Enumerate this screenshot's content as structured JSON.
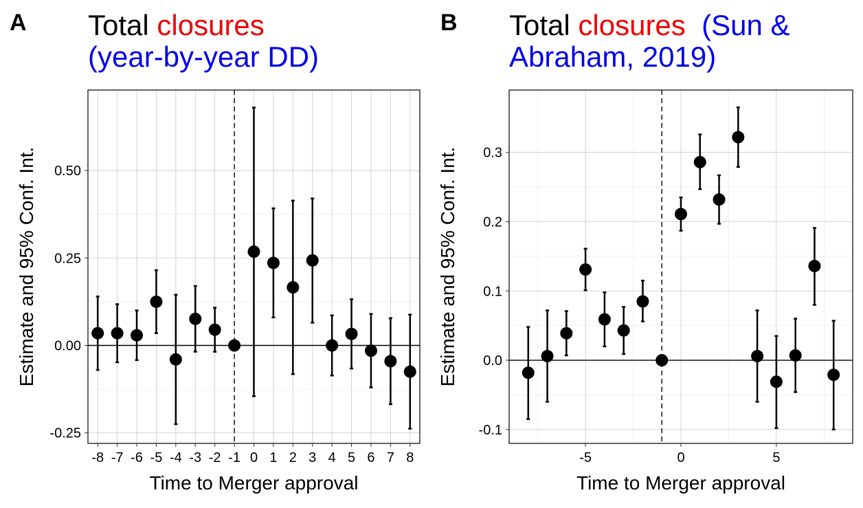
{
  "colors": {
    "red": "#ee0000",
    "blue": "#0000ee",
    "points": "#000000"
  },
  "panelA": {
    "letter": "A",
    "title": {
      "part1": "Total ",
      "part2": "closures",
      "line2": "(year-by-year DD)"
    }
  },
  "panelB": {
    "letter": "B",
    "title": {
      "part1": "Total ",
      "part2": "closures",
      "part3": "  (Sun &",
      "line2": "Abraham, 2019)"
    }
  },
  "chart_data": [
    {
      "type": "scatter",
      "subtype": "point-errorbar",
      "xlabel": "Time to Merger approval",
      "ylabel": "Estimate and 95% Conf. Int.",
      "x_axis": "categorical",
      "xticks": [
        "-8",
        "-7",
        "-6",
        "-5",
        "-4",
        "-3",
        "-2",
        "-1",
        "0",
        "1",
        "2",
        "3",
        "4",
        "5",
        "6",
        "7",
        "8"
      ],
      "yticks": [
        "-0.25",
        "0.00",
        "0.25",
        "0.50"
      ],
      "ylim": [
        -0.28,
        0.73
      ],
      "reference_line": {
        "y": 0,
        "vline_x": -1,
        "vline_style": "dashed"
      },
      "grid": true,
      "points": [
        {
          "x": -8,
          "y": 0.035,
          "lo": -0.07,
          "hi": 0.14
        },
        {
          "x": -7,
          "y": 0.035,
          "lo": -0.048,
          "hi": 0.118
        },
        {
          "x": -6,
          "y": 0.029,
          "lo": -0.042,
          "hi": 0.1
        },
        {
          "x": -5,
          "y": 0.125,
          "lo": 0.035,
          "hi": 0.215
        },
        {
          "x": -4,
          "y": -0.04,
          "lo": -0.225,
          "hi": 0.145
        },
        {
          "x": -3,
          "y": 0.076,
          "lo": -0.018,
          "hi": 0.17
        },
        {
          "x": -2,
          "y": 0.045,
          "lo": -0.018,
          "hi": 0.108
        },
        {
          "x": -1,
          "y": 0.0,
          "lo": 0.0,
          "hi": 0.0
        },
        {
          "x": 0,
          "y": 0.268,
          "lo": -0.145,
          "hi": 0.68
        },
        {
          "x": 1,
          "y": 0.236,
          "lo": 0.08,
          "hi": 0.392
        },
        {
          "x": 2,
          "y": 0.166,
          "lo": -0.082,
          "hi": 0.414
        },
        {
          "x": 3,
          "y": 0.243,
          "lo": 0.065,
          "hi": 0.42
        },
        {
          "x": 4,
          "y": 0.0,
          "lo": -0.086,
          "hi": 0.086
        },
        {
          "x": 5,
          "y": 0.033,
          "lo": -0.066,
          "hi": 0.132
        },
        {
          "x": 6,
          "y": -0.015,
          "lo": -0.12,
          "hi": 0.09
        },
        {
          "x": 7,
          "y": -0.045,
          "lo": -0.168,
          "hi": 0.078
        },
        {
          "x": 8,
          "y": -0.075,
          "lo": -0.238,
          "hi": 0.088
        }
      ]
    },
    {
      "type": "scatter",
      "subtype": "point-errorbar",
      "xlabel": "Time to Merger approval",
      "ylabel": "Estimate and 95% Conf. Int.",
      "x_axis": "numeric",
      "xticks": [
        "-5",
        "0",
        "5"
      ],
      "yticks": [
        "-0.1",
        "0.0",
        "0.1",
        "0.2",
        "0.3"
      ],
      "xlim": [
        -9,
        9
      ],
      "ylim": [
        -0.12,
        0.39
      ],
      "reference_line": {
        "y": 0,
        "vline_x": -1,
        "vline_style": "dashed"
      },
      "grid": true,
      "points": [
        {
          "x": -8,
          "y": -0.018,
          "lo": -0.085,
          "hi": 0.048
        },
        {
          "x": -7,
          "y": 0.006,
          "lo": -0.06,
          "hi": 0.072
        },
        {
          "x": -6,
          "y": 0.039,
          "lo": 0.007,
          "hi": 0.071
        },
        {
          "x": -5,
          "y": 0.131,
          "lo": 0.101,
          "hi": 0.161
        },
        {
          "x": -4,
          "y": 0.059,
          "lo": 0.02,
          "hi": 0.098
        },
        {
          "x": -3,
          "y": 0.043,
          "lo": 0.009,
          "hi": 0.077
        },
        {
          "x": -2,
          "y": 0.085,
          "lo": 0.056,
          "hi": 0.115
        },
        {
          "x": -1,
          "y": 0.0,
          "lo": 0.0,
          "hi": 0.0
        },
        {
          "x": 0,
          "y": 0.211,
          "lo": 0.187,
          "hi": 0.235
        },
        {
          "x": 1,
          "y": 0.286,
          "lo": 0.247,
          "hi": 0.326
        },
        {
          "x": 2,
          "y": 0.232,
          "lo": 0.197,
          "hi": 0.267
        },
        {
          "x": 3,
          "y": 0.322,
          "lo": 0.279,
          "hi": 0.365
        },
        {
          "x": 4,
          "y": 0.006,
          "lo": -0.06,
          "hi": 0.072
        },
        {
          "x": 5,
          "y": -0.031,
          "lo": -0.098,
          "hi": 0.035
        },
        {
          "x": 6,
          "y": 0.007,
          "lo": -0.046,
          "hi": 0.06
        },
        {
          "x": 7,
          "y": 0.136,
          "lo": 0.08,
          "hi": 0.191
        },
        {
          "x": 8,
          "y": -0.021,
          "lo": -0.1,
          "hi": 0.057
        }
      ]
    }
  ]
}
